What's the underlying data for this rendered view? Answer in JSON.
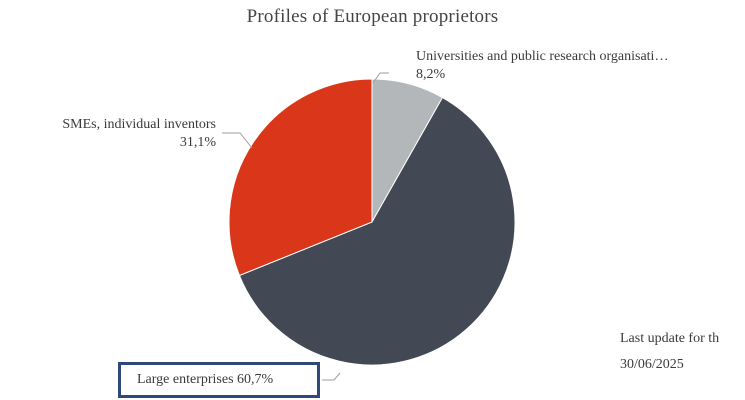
{
  "chart_data": {
    "type": "pie",
    "title": "Profiles of European proprietors",
    "slices": [
      {
        "label": "Universities and public research organisati…",
        "value": 8.2,
        "value_text": "8,2%",
        "color": "#b4b7ba"
      },
      {
        "label": "Large enterprises",
        "value": 60.7,
        "value_text": "60,7%",
        "color": "#424955"
      },
      {
        "label": "SMEs, individual inventors",
        "value": 31.1,
        "value_text": "31,1%",
        "color": "#d9361a"
      }
    ],
    "start_angle_deg": 0,
    "direction": "clockwise"
  },
  "footer": {
    "last_update_label": "Last update for th",
    "last_update_date": "30/06/2025"
  }
}
